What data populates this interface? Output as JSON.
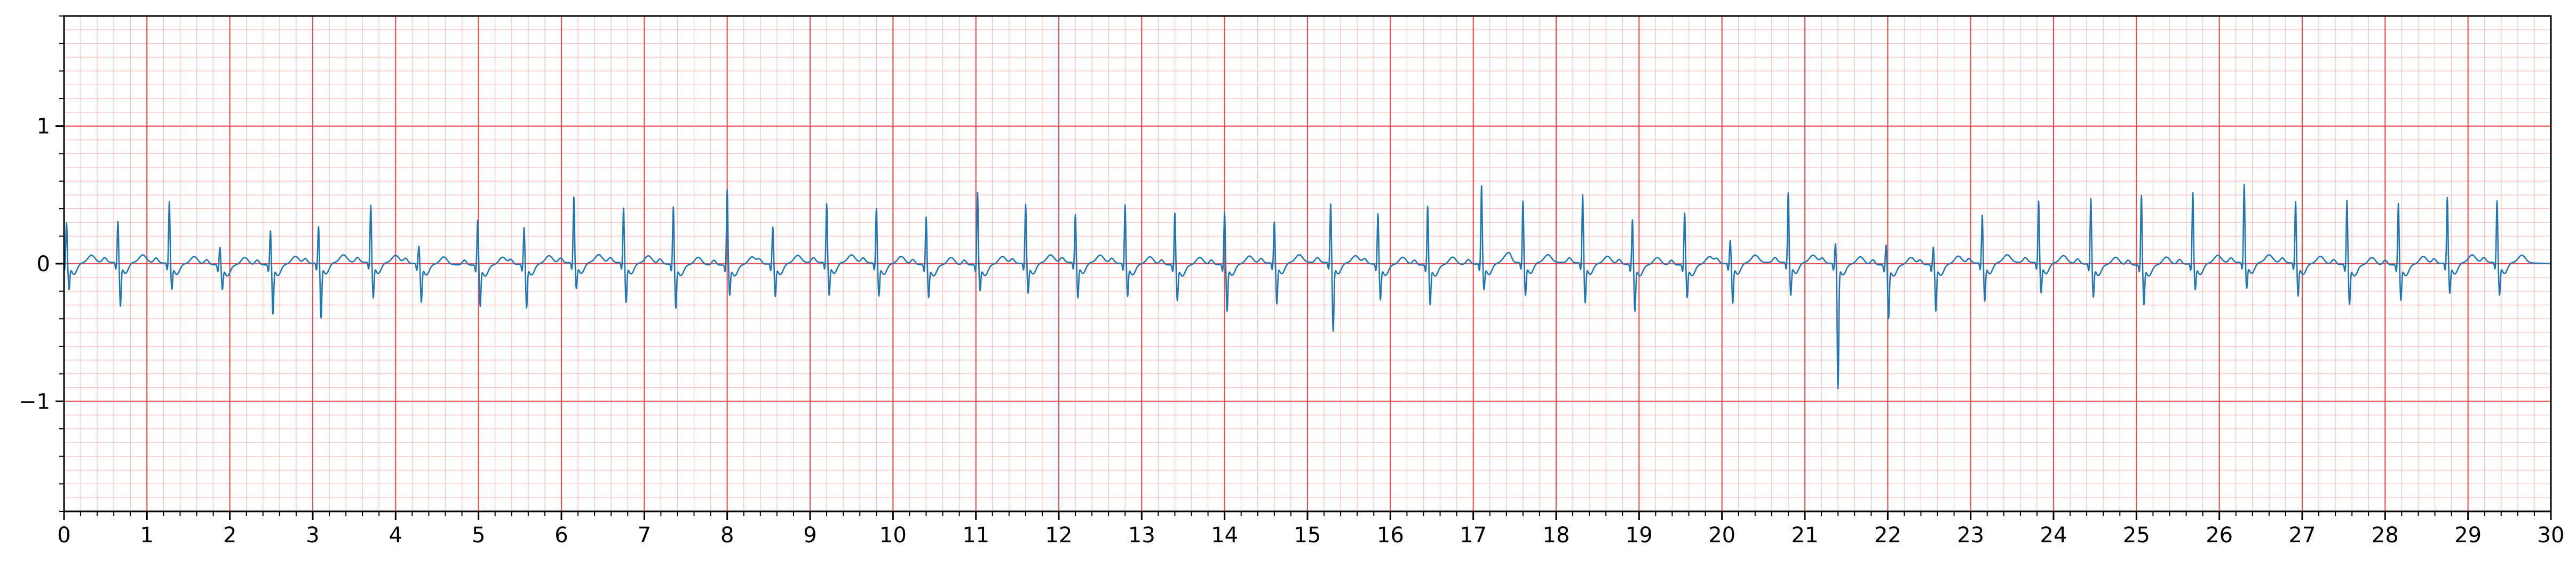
{
  "chart_data": {
    "type": "line",
    "title": "",
    "xlabel": "",
    "ylabel": "",
    "xlim": [
      0,
      30
    ],
    "ylim": [
      -1.8,
      1.8
    ],
    "x_ticks": [
      0,
      1,
      2,
      3,
      4,
      5,
      6,
      7,
      8,
      9,
      10,
      11,
      12,
      13,
      14,
      15,
      16,
      17,
      18,
      19,
      20,
      21,
      22,
      23,
      24,
      25,
      26,
      27,
      28,
      29,
      30
    ],
    "x_tick_labels": [
      "0",
      "1",
      "2",
      "3",
      "4",
      "5",
      "6",
      "7",
      "8",
      "9",
      "10",
      "11",
      "12",
      "13",
      "14",
      "15",
      "16",
      "17",
      "18",
      "19",
      "20",
      "21",
      "22",
      "23",
      "24",
      "25",
      "26",
      "27",
      "28",
      "29",
      "30"
    ],
    "y_ticks": [
      -1,
      0,
      1
    ],
    "y_tick_labels": [
      "−1",
      "0",
      "1"
    ],
    "grid": {
      "major": true,
      "major_x_step": 1,
      "major_y_step": 1,
      "major_color": "#e83a3a",
      "minor": true,
      "minor_x_step": 0.2,
      "minor_y_step": 0.1,
      "minor_color": "#ff9999"
    },
    "legend": "none",
    "series": [
      {
        "color": "#1f77b4",
        "beats": [
          {
            "t": 0.03,
            "r": 0.25,
            "s": -0.15
          },
          {
            "t": 0.65,
            "r": 0.25,
            "s": -0.28
          },
          {
            "t": 1.27,
            "r": 0.4,
            "s": -0.15
          },
          {
            "t": 1.88,
            "r": 0.08,
            "s": -0.14
          },
          {
            "t": 2.49,
            "r": 0.2,
            "s": -0.32
          },
          {
            "t": 3.07,
            "r": 0.22,
            "s": -0.36
          },
          {
            "t": 3.7,
            "r": 0.37,
            "s": -0.22
          },
          {
            "t": 4.28,
            "r": 0.08,
            "s": -0.24
          },
          {
            "t": 4.99,
            "r": 0.28,
            "s": -0.26
          },
          {
            "t": 5.55,
            "r": 0.22,
            "s": -0.28
          },
          {
            "t": 6.15,
            "r": 0.43,
            "s": -0.15
          },
          {
            "t": 6.75,
            "r": 0.35,
            "s": -0.25
          },
          {
            "t": 7.35,
            "r": 0.37,
            "s": -0.28
          },
          {
            "t": 8.0,
            "r": 0.5,
            "s": -0.18
          },
          {
            "t": 8.55,
            "r": 0.22,
            "s": -0.2
          },
          {
            "t": 9.2,
            "r": 0.38,
            "s": -0.2
          },
          {
            "t": 9.8,
            "r": 0.35,
            "s": -0.2
          },
          {
            "t": 10.4,
            "r": 0.3,
            "s": -0.2
          },
          {
            "t": 11.02,
            "r": 0.48,
            "s": -0.15
          },
          {
            "t": 11.6,
            "r": 0.38,
            "s": -0.18
          },
          {
            "t": 12.2,
            "r": 0.3,
            "s": -0.22
          },
          {
            "t": 12.8,
            "r": 0.38,
            "s": -0.2
          },
          {
            "t": 13.4,
            "r": 0.33,
            "s": -0.22
          },
          {
            "t": 14.0,
            "r": 0.33,
            "s": -0.3
          },
          {
            "t": 14.6,
            "r": 0.25,
            "s": -0.26
          },
          {
            "t": 15.28,
            "r": 0.38,
            "s": -0.46
          },
          {
            "t": 15.85,
            "r": 0.32,
            "s": -0.22
          },
          {
            "t": 16.45,
            "r": 0.38,
            "s": -0.25
          },
          {
            "t": 17.1,
            "r": 0.52,
            "s": -0.15
          },
          {
            "t": 17.6,
            "r": 0.4,
            "s": -0.2
          },
          {
            "t": 18.32,
            "r": 0.45,
            "s": -0.25
          },
          {
            "t": 18.92,
            "r": 0.28,
            "s": -0.3
          },
          {
            "t": 19.55,
            "r": 0.33,
            "s": -0.2
          },
          {
            "t": 20.1,
            "r": 0.12,
            "s": -0.25
          },
          {
            "t": 20.8,
            "r": 0.46,
            "s": -0.2
          },
          {
            "t": 21.37,
            "r": 0.1,
            "s": -0.87
          },
          {
            "t": 21.98,
            "r": 0.1,
            "s": -0.35
          },
          {
            "t": 22.55,
            "r": 0.08,
            "s": -0.3
          },
          {
            "t": 23.14,
            "r": 0.3,
            "s": -0.24
          },
          {
            "t": 23.82,
            "r": 0.4,
            "s": -0.18
          },
          {
            "t": 24.45,
            "r": 0.43,
            "s": -0.2
          },
          {
            "t": 25.06,
            "r": 0.46,
            "s": -0.25
          },
          {
            "t": 25.68,
            "r": 0.47,
            "s": -0.15
          },
          {
            "t": 26.3,
            "r": 0.52,
            "s": -0.15
          },
          {
            "t": 26.92,
            "r": 0.4,
            "s": -0.2
          },
          {
            "t": 27.54,
            "r": 0.42,
            "s": -0.25
          },
          {
            "t": 28.16,
            "r": 0.4,
            "s": -0.22
          },
          {
            "t": 28.75,
            "r": 0.43,
            "s": -0.18
          },
          {
            "t": 29.35,
            "r": 0.4,
            "s": -0.2
          }
        ]
      }
    ]
  }
}
